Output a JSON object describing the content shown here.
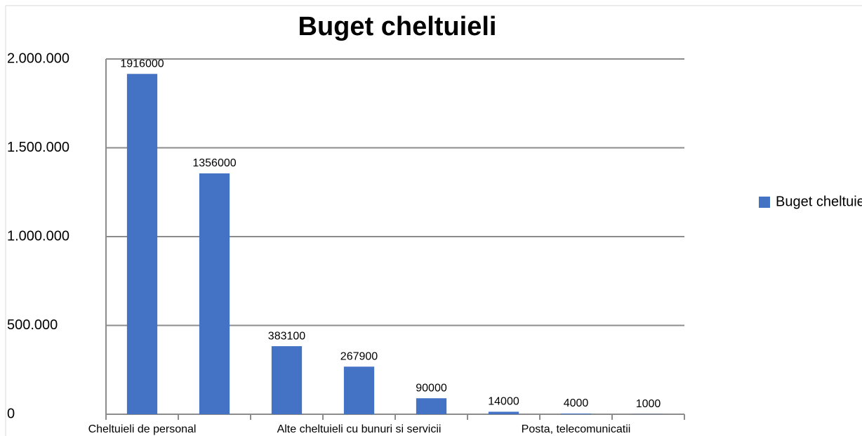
{
  "chart_data": {
    "type": "bar",
    "title": "Buget cheltuieli",
    "categories": [
      "Cheltuieli de personal",
      null,
      null,
      "Alte cheltuieli cu bunuri si servicii",
      null,
      null,
      "Posta, telecomunicatii",
      null
    ],
    "series": [
      {
        "name": "Buget cheltuieli",
        "color": "#4472c4",
        "values": [
          1916000,
          1356000,
          383100,
          267900,
          90000,
          14000,
          4000,
          1000
        ]
      }
    ],
    "ylim": [
      0,
      2000000
    ],
    "yticks": [
      0,
      {
        "value": 500000,
        "label": "500.000"
      },
      {
        "value": 1000000,
        "label": "1.000.000"
      },
      {
        "value": 1500000,
        "label": "1.500.000"
      },
      {
        "value": 2000000,
        "label": "2.000.000"
      }
    ],
    "grid": true,
    "legend": "right"
  }
}
